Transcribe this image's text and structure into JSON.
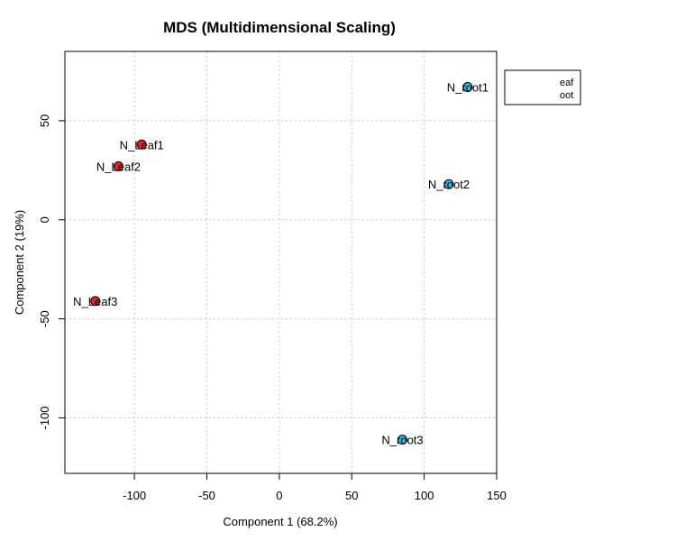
{
  "chart_data": {
    "type": "scatter",
    "title": "MDS (Multidimensional Scaling)",
    "xlabel": "Component 1 (68.2%)",
    "ylabel": "Component 2 (19%)",
    "xlim": [
      -148,
      150
    ],
    "ylim": [
      -128,
      85
    ],
    "xticks": [
      -100,
      -50,
      0,
      50,
      100,
      150
    ],
    "yticks": [
      -100,
      -50,
      0,
      50
    ],
    "xtick_labels": [
      "-100",
      "-50",
      "0",
      "50",
      "100",
      "150"
    ],
    "ytick_labels": [
      "-100",
      "-50",
      "0",
      "50"
    ],
    "grid": true,
    "series": [
      {
        "name": "Leaf",
        "color": "#e0261f",
        "points": [
          {
            "label": "N_Leaf1",
            "x": -95,
            "y": 38
          },
          {
            "label": "N_Leaf2",
            "x": -111,
            "y": 27
          },
          {
            "label": "N_Leaf3",
            "x": -127,
            "y": -41
          }
        ]
      },
      {
        "name": "root",
        "color": "#33b8e8",
        "points": [
          {
            "label": "N_root1",
            "x": 130,
            "y": 67
          },
          {
            "label": "N_root2",
            "x": 117,
            "y": 18
          },
          {
            "label": "N_root3",
            "x": 85,
            "y": -111
          }
        ]
      }
    ],
    "legend": {
      "placement": "top-right, clipped outside plot",
      "entries": [
        "eaf",
        "oot"
      ]
    }
  }
}
